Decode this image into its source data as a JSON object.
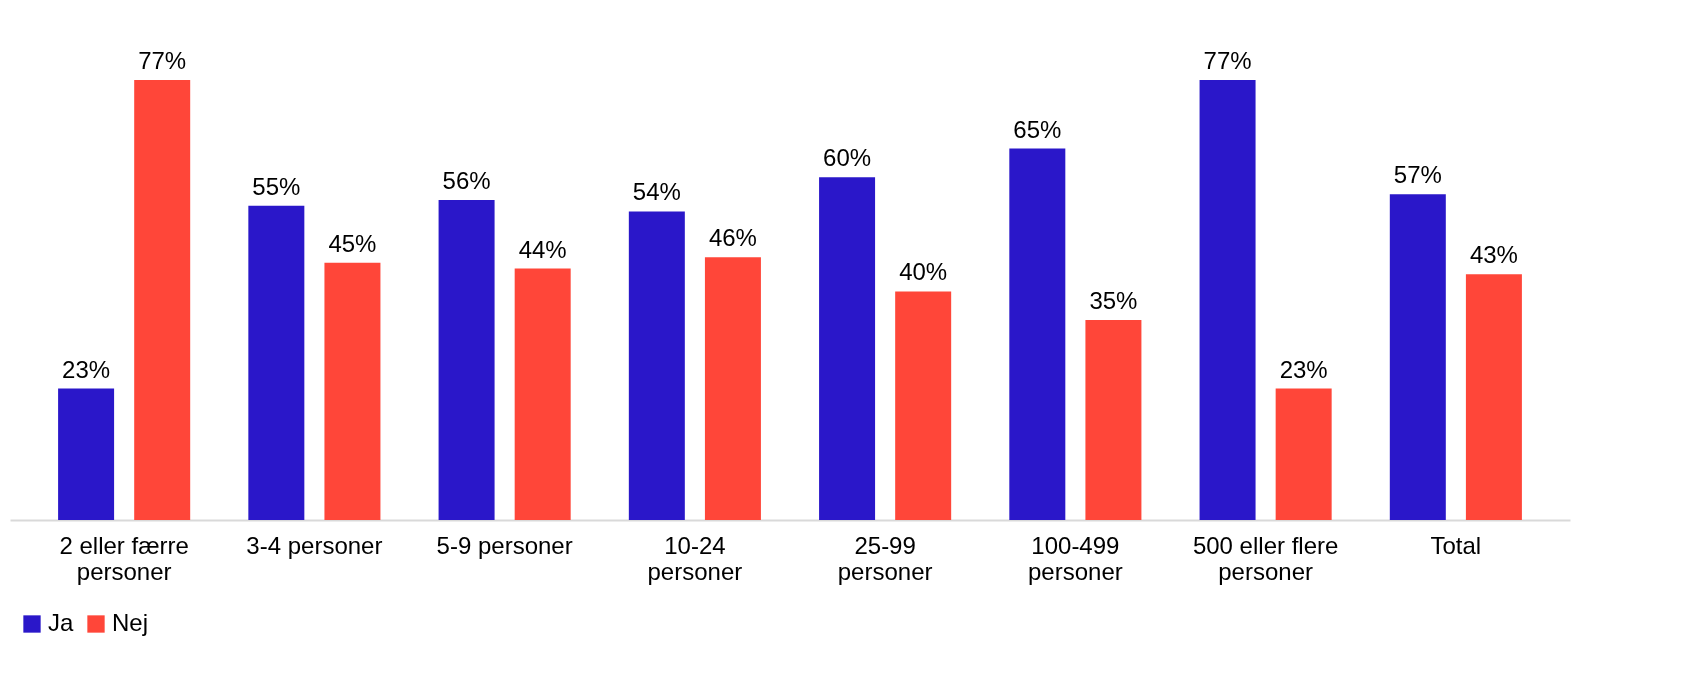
{
  "chart_data": {
    "type": "bar",
    "categories": [
      "2 eller færre personer",
      "3-4 personer",
      "5-9 personer",
      "10-24 personer",
      "25-99 personer",
      "100-499 personer",
      "500 eller flere personer",
      "Total"
    ],
    "series": [
      {
        "name": "Ja",
        "color": "#2a17c9",
        "values": [
          23,
          55,
          56,
          54,
          60,
          65,
          77,
          57
        ],
        "value_labels": [
          "23%",
          "55%",
          "56%",
          "54%",
          "60%",
          "65%",
          "77%",
          "57%"
        ]
      },
      {
        "name": "Nej",
        "color": "#ff4639",
        "values": [
          77,
          45,
          44,
          46,
          40,
          35,
          23,
          43
        ],
        "value_labels": [
          "77%",
          "45%",
          "44%",
          "46%",
          "40%",
          "35%",
          "23%",
          "43%"
        ]
      }
    ],
    "legend": "bottom",
    "grid": false
  }
}
